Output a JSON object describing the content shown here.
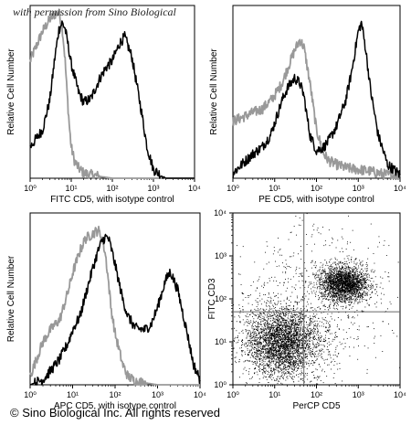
{
  "watermark": "with permission from Sino Biological",
  "copyright": "© Sino Biological Inc. All rights reserved",
  "colors": {
    "isotype": "#999999",
    "stained": "#000000",
    "dots": "#000000"
  },
  "chart_data": [
    {
      "type": "line",
      "panel": "top-left",
      "xlabel": "FITC CD5, with isotype control",
      "ylabel": "Relative Cell Number",
      "xscale": "log",
      "xlim": [
        1,
        10000
      ],
      "ylim": [
        0,
        100
      ],
      "xticks": [
        "10⁰",
        "10¹",
        "10²",
        "10³",
        "10⁴"
      ],
      "series": [
        {
          "color": "#999999",
          "x": [
            1,
            1.5,
            2,
            3,
            4,
            5,
            6,
            7,
            8,
            9,
            10,
            12,
            15,
            20,
            30,
            50,
            100,
            1000,
            10000
          ],
          "y": [
            68,
            78,
            85,
            92,
            95,
            96,
            88,
            70,
            48,
            30,
            18,
            10,
            6,
            3,
            2,
            1,
            0,
            0,
            0
          ]
        },
        {
          "color": "#000000",
          "x": [
            1,
            2,
            3,
            4,
            5,
            6,
            7,
            8,
            10,
            15,
            20,
            30,
            50,
            70,
            100,
            150,
            200,
            300,
            500,
            700,
            1000,
            2000,
            10000
          ],
          "y": [
            18,
            28,
            45,
            70,
            86,
            90,
            87,
            80,
            66,
            50,
            44,
            46,
            58,
            64,
            68,
            78,
            82,
            70,
            40,
            18,
            5,
            0,
            0
          ]
        }
      ]
    },
    {
      "type": "line",
      "panel": "top-right",
      "xlabel": "PE CD5, with isotype control",
      "ylabel": "Relative Cell Number",
      "xscale": "log",
      "xlim": [
        1,
        10000
      ],
      "ylim": [
        0,
        100
      ],
      "xticks": [
        "10⁰",
        "10¹",
        "10²",
        "10³",
        "10⁴"
      ],
      "series": [
        {
          "color": "#999999",
          "x": [
            1,
            2,
            3,
            5,
            8,
            10,
            15,
            20,
            30,
            40,
            50,
            70,
            100,
            150,
            200,
            300,
            500,
            1000,
            2000,
            3000,
            5000,
            10000
          ],
          "y": [
            33,
            36,
            38,
            40,
            45,
            48,
            55,
            63,
            74,
            80,
            76,
            55,
            28,
            14,
            10,
            8,
            6,
            5,
            4,
            3,
            2,
            1
          ]
        },
        {
          "color": "#000000",
          "x": [
            1,
            2,
            3,
            5,
            8,
            10,
            15,
            20,
            30,
            40,
            50,
            60,
            70,
            100,
            150,
            200,
            300,
            500,
            700,
            1000,
            1200,
            1500,
            2000,
            3000,
            5000,
            10000
          ],
          "y": [
            3,
            10,
            14,
            18,
            25,
            32,
            45,
            52,
            58,
            55,
            48,
            35,
            25,
            16,
            18,
            22,
            30,
            45,
            62,
            85,
            90,
            75,
            50,
            25,
            8,
            2
          ]
        }
      ]
    },
    {
      "type": "line",
      "panel": "bottom-left",
      "xlabel": "APC CD5, with isotype control",
      "ylabel": "Relative Cell Number",
      "xscale": "log",
      "xlim": [
        1,
        10000
      ],
      "ylim": [
        0,
        100
      ],
      "xticks": [
        "10⁰",
        "10¹",
        "10²",
        "10³",
        "10⁴"
      ],
      "series": [
        {
          "color": "#999999",
          "x": [
            1,
            2,
            3,
            5,
            8,
            10,
            15,
            20,
            30,
            40,
            50,
            60,
            70,
            80,
            100,
            150,
            200,
            300,
            1000,
            10000
          ],
          "y": [
            5,
            25,
            32,
            38,
            55,
            65,
            78,
            85,
            88,
            90,
            85,
            75,
            60,
            45,
            30,
            12,
            5,
            2,
            0,
            0
          ]
        },
        {
          "color": "#000000",
          "x": [
            1,
            2,
            3,
            5,
            8,
            10,
            15,
            20,
            30,
            40,
            50,
            60,
            70,
            80,
            100,
            150,
            200,
            300,
            500,
            700,
            1000,
            1500,
            2000,
            3000,
            5000,
            7000,
            10000
          ],
          "y": [
            0,
            3,
            8,
            15,
            25,
            32,
            40,
            52,
            68,
            78,
            84,
            86,
            85,
            80,
            70,
            50,
            40,
            33,
            32,
            35,
            45,
            60,
            66,
            55,
            30,
            12,
            3
          ]
        }
      ]
    },
    {
      "type": "scatter",
      "panel": "bottom-right",
      "xlabel": "PerCP CD5",
      "ylabel": "FITC CD3",
      "xscale": "log",
      "yscale": "log",
      "xlim": [
        1,
        10000
      ],
      "ylim": [
        1,
        10000
      ],
      "xticks": [
        "10⁰",
        "10¹",
        "10²",
        "10³",
        "10⁴"
      ],
      "yticks": [
        "10⁰",
        "10¹",
        "10²",
        "10³",
        "10⁴"
      ],
      "quadrant_gate": {
        "x": 50,
        "y": 50
      },
      "clusters": [
        {
          "center": [
            15,
            10
          ],
          "spread_decades": [
            0.45,
            0.4
          ],
          "count": 3400
        },
        {
          "center": [
            450,
            230
          ],
          "spread_decades": [
            0.28,
            0.2
          ],
          "count": 2300
        },
        {
          "center": [
            100,
            100
          ],
          "spread_decades": [
            0.9,
            0.9
          ],
          "count": 700
        }
      ]
    }
  ]
}
